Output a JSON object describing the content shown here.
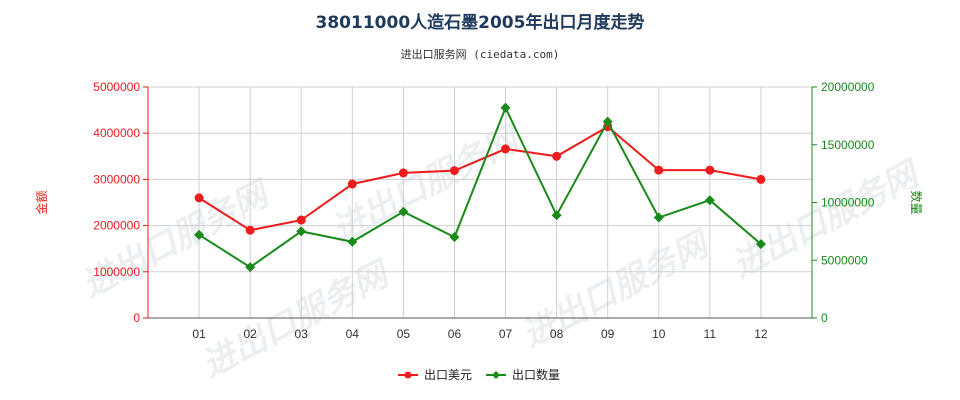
{
  "chart_data": {
    "type": "line",
    "title": "38011000人造石墨2005年出口月度走势",
    "subtitle": "进出口服务网 (ciedata.com)",
    "categories": [
      "01",
      "02",
      "03",
      "04",
      "05",
      "06",
      "07",
      "08",
      "09",
      "10",
      "11",
      "12"
    ],
    "series": [
      {
        "name": "出口美元",
        "axis": "left",
        "color": "#ee1c1c",
        "values": [
          2600000,
          1900000,
          2120000,
          2900000,
          3140000,
          3190000,
          3660000,
          3500000,
          4140000,
          3200000,
          3200000,
          3000000
        ]
      },
      {
        "name": "出口数量",
        "axis": "right",
        "color": "#1a8a1a",
        "values": [
          7200000,
          4400000,
          7500000,
          6600000,
          9200000,
          7000000,
          18200000,
          8900000,
          17000000,
          8700000,
          10200000,
          6400000
        ]
      }
    ],
    "y_left": {
      "label": "金额",
      "ylim": [
        0,
        5000000
      ],
      "ticks": [
        "0",
        "1000000",
        "2000000",
        "3000000",
        "4000000",
        "5000000"
      ],
      "color": "#ee1c1c"
    },
    "y_right": {
      "label": "数量",
      "ylim": [
        0,
        20000000
      ],
      "ticks": [
        "0",
        "5000000",
        "10000000",
        "15000000",
        "20000000"
      ],
      "color": "#1a8a1a"
    },
    "grid": true,
    "legend_position": "bottom-center"
  },
  "watermark": "进出口服务网"
}
